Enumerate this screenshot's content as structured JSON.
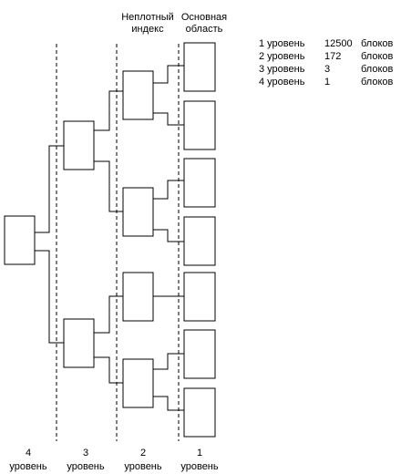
{
  "column_headers": {
    "sparse_index": [
      "Неплотный",
      "индекс"
    ],
    "main_area": [
      "Основная",
      "область"
    ]
  },
  "legend": {
    "rows": [
      {
        "level": "1 уровень",
        "count": "12500",
        "unit": "блоков"
      },
      {
        "level": "2 уровень",
        "count": "172",
        "unit": "блоков"
      },
      {
        "level": "3 уровень",
        "count": "3",
        "unit": "блоков"
      },
      {
        "level": "4 уровень",
        "count": "1",
        "unit": "блоков"
      }
    ]
  },
  "level_labels": [
    {
      "number": "4",
      "word": "уровень"
    },
    {
      "number": "3",
      "word": "уровень"
    },
    {
      "number": "2",
      "word": "уровень"
    },
    {
      "number": "1",
      "word": "уровень"
    }
  ]
}
